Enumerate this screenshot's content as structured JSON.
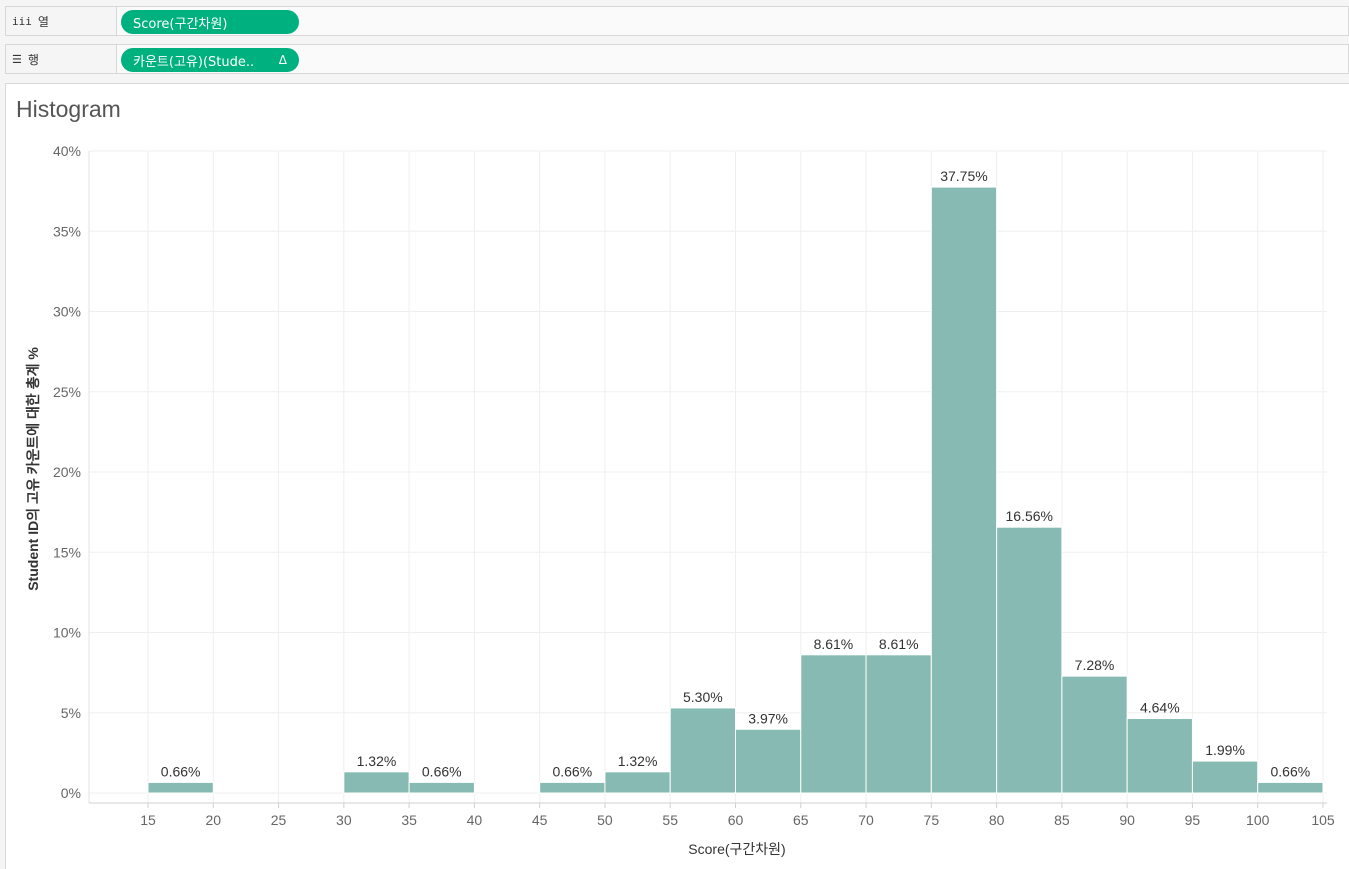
{
  "shelves": {
    "columns": {
      "label": "열",
      "icon": "columns-icon",
      "pill": "Score(구간차원)"
    },
    "rows": {
      "label": "행",
      "icon": "rows-icon",
      "pill": "카운트(고유)(Stude..",
      "pill_marker": "Δ"
    }
  },
  "sheet": {
    "title": "Histogram"
  },
  "colors": {
    "bar": "#86bab2",
    "pill": "#00b180",
    "grid": "#efefef",
    "axis_text": "#666666",
    "label_text": "#333333"
  },
  "chart_data": {
    "type": "bar",
    "title": "Histogram",
    "xlabel": "Score(구간차원)",
    "ylabel": "Student ID의 고유 카운트에 대한 총계 %",
    "bin_width": 5,
    "xlim": [
      10,
      105
    ],
    "xticks": [
      15,
      20,
      25,
      30,
      35,
      40,
      45,
      50,
      55,
      60,
      65,
      70,
      75,
      80,
      85,
      90,
      95,
      100,
      105
    ],
    "ylim": [
      0,
      40
    ],
    "yticks": [
      0,
      5,
      10,
      15,
      20,
      25,
      30,
      35,
      40
    ],
    "ytick_labels": [
      "0%",
      "5%",
      "10%",
      "15%",
      "20%",
      "25%",
      "30%",
      "35%",
      "40%"
    ],
    "grid": true,
    "bins": [
      {
        "start": 15,
        "value": 0.66,
        "label": "0.66%"
      },
      {
        "start": 30,
        "value": 1.32,
        "label": "1.32%"
      },
      {
        "start": 35,
        "value": 0.66,
        "label": "0.66%"
      },
      {
        "start": 45,
        "value": 0.66,
        "label": "0.66%"
      },
      {
        "start": 50,
        "value": 1.32,
        "label": "1.32%"
      },
      {
        "start": 55,
        "value": 5.3,
        "label": "5.30%"
      },
      {
        "start": 60,
        "value": 3.97,
        "label": "3.97%"
      },
      {
        "start": 65,
        "value": 8.61,
        "label": "8.61%"
      },
      {
        "start": 70,
        "value": 8.61,
        "label": "8.61%"
      },
      {
        "start": 75,
        "value": 37.75,
        "label": "37.75%"
      },
      {
        "start": 80,
        "value": 16.56,
        "label": "16.56%"
      },
      {
        "start": 85,
        "value": 7.28,
        "label": "7.28%"
      },
      {
        "start": 90,
        "value": 4.64,
        "label": "4.64%"
      },
      {
        "start": 95,
        "value": 1.99,
        "label": "1.99%"
      },
      {
        "start": 100,
        "value": 0.66,
        "label": "0.66%"
      }
    ]
  }
}
